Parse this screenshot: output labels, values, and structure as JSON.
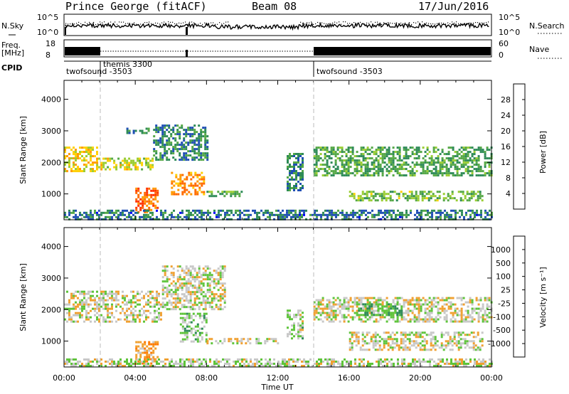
{
  "header": {
    "station": "Prince George (fitACF)",
    "beam": "Beam 08",
    "date": "17/Jun/2016"
  },
  "strips": {
    "nsky_label": "N.Sky",
    "nsearch_label": "N.Search",
    "nsky_ticks": [
      "10^5",
      "10^0"
    ],
    "nsearch_ticks": [
      "10^5",
      "10^0"
    ],
    "freq_label": "Freq.",
    "freq_unit": "[MHz]",
    "freq_ticks": [
      "18",
      "8"
    ],
    "nave_label": "Nave",
    "nave_ticks": [
      "60",
      "0"
    ],
    "cpid_label": "CPID",
    "cpid_segments": [
      {
        "label": "twofsound -3503",
        "start": 0,
        "end": 2
      },
      {
        "label": "themis 3300",
        "start": 2,
        "end": 14
      },
      {
        "label": "twofsound -3503",
        "start": 14,
        "end": 24
      }
    ]
  },
  "axes": {
    "ylabel": "Slant Range [km]",
    "xlabel": "Time UT",
    "x_ticks": [
      "00:00",
      "04:00",
      "08:00",
      "12:00",
      "16:00",
      "20:00",
      "00:00"
    ],
    "y_ticks": [
      "1000",
      "2000",
      "3000",
      "4000"
    ]
  },
  "colorbars": {
    "power": {
      "label": "Power [dB]",
      "ticks": [
        "4",
        "8",
        "12",
        "16",
        "20",
        "24",
        "28"
      ],
      "colors": [
        "#0000ff",
        "#1f4fb4",
        "#2e8b57",
        "#55a846",
        "#9acd32",
        "#ffd000",
        "#ff9900",
        "#ff6a00",
        "#ff3300",
        "#ff0000"
      ]
    },
    "velocity": {
      "label": "Velocity [m s⁻¹]",
      "ticks": [
        "1000",
        "500",
        "100",
        "25",
        "-25",
        "-100",
        "-500",
        "-1000"
      ],
      "colors": [
        "#1f3fbf",
        "#1f6bb0",
        "#2e8b57",
        "#5ec43a",
        "#c8c8c8",
        "#f0a030",
        "#ff7a00",
        "#ff3a00",
        "#ff0000"
      ]
    }
  },
  "chart_data": {
    "type": "heatmap",
    "title": "Prince George (fitACF)  Beam 08  17/Jun/2016",
    "xlabel": "Time UT",
    "ylabel": "Slant Range [km]",
    "xlim": [
      0,
      24
    ],
    "ylim": [
      180,
      4600
    ],
    "panels": [
      {
        "name": "Power [dB]",
        "clim": [
          3,
          31
        ],
        "regions": [
          {
            "t": [
              0.0,
              1.8
            ],
            "r": [
              1700,
              2500
            ],
            "value": 18
          },
          {
            "t": [
              1.8,
              5.0
            ],
            "r": [
              1750,
              2150
            ],
            "value": 17
          },
          {
            "t": [
              3.5,
              4.8
            ],
            "r": [
              2900,
              3100
            ],
            "value": 9
          },
          {
            "t": [
              4.0,
              5.3
            ],
            "r": [
              400,
              1200
            ],
            "value": 24
          },
          {
            "t": [
              5.0,
              8.0
            ],
            "r": [
              2100,
              3200
            ],
            "value": 10
          },
          {
            "t": [
              6.0,
              7.8
            ],
            "r": [
              1000,
              1700
            ],
            "value": 22
          },
          {
            "t": [
              8.0,
              10.0
            ],
            "r": [
              900,
              1100
            ],
            "value": 12
          },
          {
            "t": [
              12.5,
              13.4
            ],
            "r": [
              1100,
              2300
            ],
            "value": 10
          },
          {
            "t": [
              14.0,
              24.0
            ],
            "r": [
              1600,
              2500
            ],
            "value": 12
          },
          {
            "t": [
              16.0,
              23.5
            ],
            "r": [
              800,
              1100
            ],
            "value": 14
          },
          {
            "t": [
              0.0,
              24.0
            ],
            "r": [
              180,
              500
            ],
            "value": 9
          }
        ]
      },
      {
        "name": "Velocity [m s^-1]",
        "clim": [
          -1000,
          1000
        ],
        "regions": [
          {
            "t": [
              0.0,
              5.5
            ],
            "r": [
              1600,
              2600
            ],
            "value": 0
          },
          {
            "t": [
              5.5,
              9.0
            ],
            "r": [
              2000,
              3400
            ],
            "value": 0
          },
          {
            "t": [
              4.0,
              5.3
            ],
            "r": [
              300,
              1000
            ],
            "value": -300
          },
          {
            "t": [
              6.5,
              8.0
            ],
            "r": [
              1000,
              1900
            ],
            "value": 150
          },
          {
            "t": [
              8.0,
              12.0
            ],
            "r": [
              900,
              1100
            ],
            "value": 0
          },
          {
            "t": [
              12.5,
              13.4
            ],
            "r": [
              1100,
              2000
            ],
            "value": 100
          },
          {
            "t": [
              14.0,
              24.0
            ],
            "r": [
              1600,
              2400
            ],
            "value": 0
          },
          {
            "t": [
              16.5,
              19.0
            ],
            "r": [
              1800,
              2200
            ],
            "value": 300
          },
          {
            "t": [
              16.0,
              23.5
            ],
            "r": [
              700,
              1300
            ],
            "value": 0
          },
          {
            "t": [
              0.0,
              24.0
            ],
            "r": [
              180,
              450
            ],
            "value": 60
          }
        ]
      }
    ]
  }
}
